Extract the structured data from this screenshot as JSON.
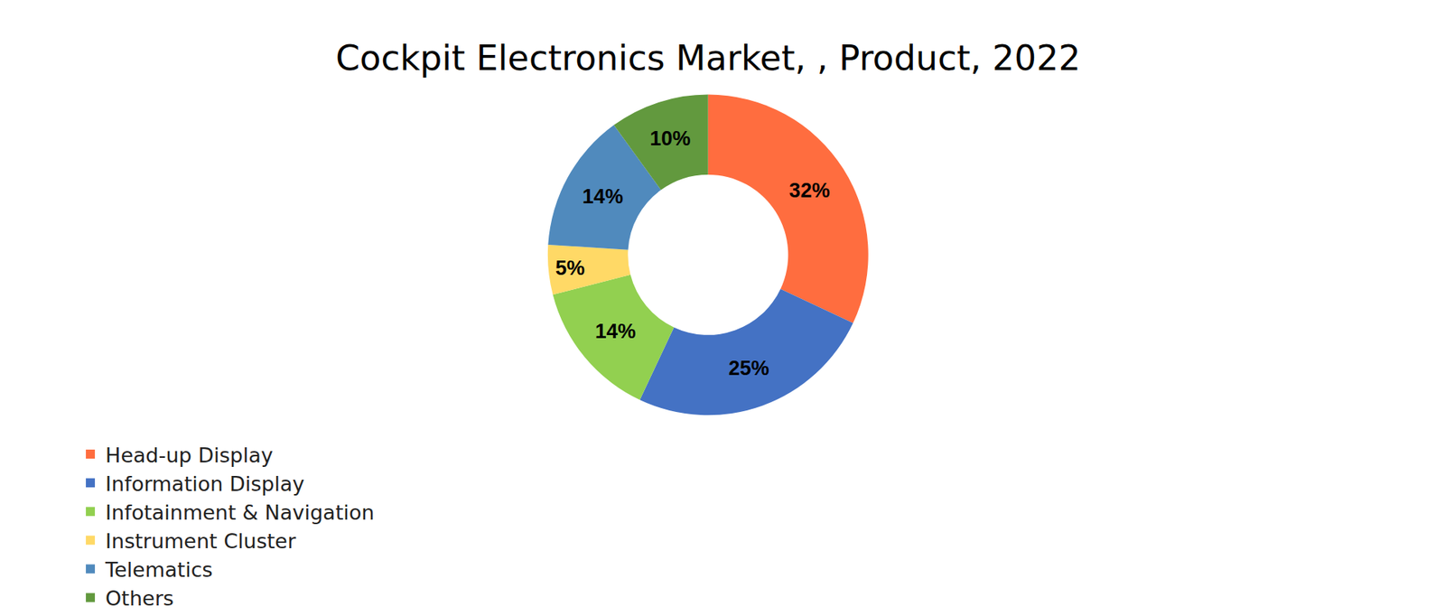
{
  "chart_data": {
    "type": "pie",
    "title": "Cockpit Electronics Market, , Product, 2022",
    "categories": [
      "Head-up Display",
      "Information Display",
      "Infotainment & Navigation",
      "Instrument Cluster",
      "Telematics",
      "Others"
    ],
    "values": [
      32,
      25,
      14,
      5,
      14,
      10
    ],
    "value_labels": [
      "32%",
      "25%",
      "14%",
      "5%",
      "14%",
      "10%"
    ],
    "colors": [
      "#ff6d3f",
      "#4472c4",
      "#92d050",
      "#ffd966",
      "#508abd",
      "#62993e"
    ],
    "data_labels": true,
    "legend": "bottom"
  }
}
